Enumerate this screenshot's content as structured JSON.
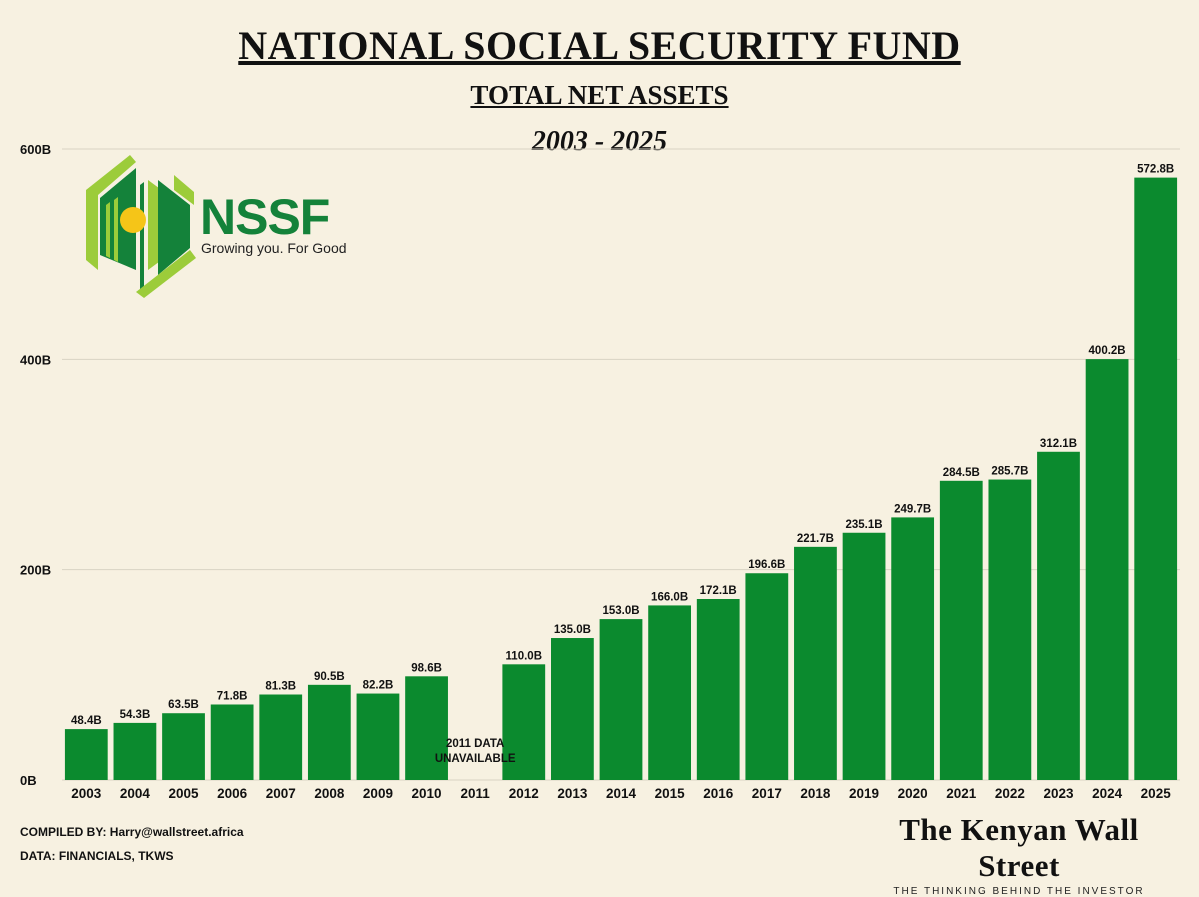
{
  "header": {
    "title": "NATIONAL SOCIAL SECURITY FUND",
    "subtitle": "TOTAL NET ASSETS",
    "range": "2003 - 2025"
  },
  "logo": {
    "name": "NSSF",
    "tagline": "Growing you. For Good"
  },
  "footer": {
    "compiled_by": "COMPILED BY: Harry@wallstreet.africa",
    "data_source": "DATA: FINANCIALS, TKWS",
    "brand_name": "The Kenyan Wall Street",
    "brand_tagline": "THE THINKING BEHIND THE INVESTOR"
  },
  "colors": {
    "background": "#f7f1e1",
    "bar": "#0b8a2e",
    "grid": "#d9d3c3",
    "logo_dark": "#14823a",
    "logo_light": "#9ccc3a",
    "logo_sun": "#f5c518"
  },
  "chart_data": {
    "type": "bar",
    "title": "TOTAL NET ASSETS",
    "ylabel": "",
    "xlabel": "",
    "ylim": [
      0,
      600
    ],
    "yticks": [
      0,
      200,
      400,
      600
    ],
    "ytick_labels": [
      "0B",
      "200B",
      "400B",
      "600B"
    ],
    "grid": true,
    "categories": [
      "2003",
      "2004",
      "2005",
      "2006",
      "2007",
      "2008",
      "2009",
      "2010",
      "2011",
      "2012",
      "2013",
      "2014",
      "2015",
      "2016",
      "2017",
      "2018",
      "2019",
      "2020",
      "2021",
      "2022",
      "2023",
      "2024",
      "2025"
    ],
    "values": [
      48.4,
      54.3,
      63.5,
      71.8,
      81.3,
      90.5,
      82.2,
      98.6,
      null,
      110.0,
      135.0,
      153.0,
      166.0,
      172.1,
      196.6,
      221.7,
      235.1,
      249.7,
      284.5,
      285.7,
      312.1,
      400.2,
      572.8
    ],
    "value_labels": [
      "48.4B",
      "54.3B",
      "63.5B",
      "71.8B",
      "81.3B",
      "90.5B",
      "82.2B",
      "98.6B",
      "",
      "110.0B",
      "135.0B",
      "153.0B",
      "166.0B",
      "172.1B",
      "196.6B",
      "221.7B",
      "235.1B",
      "249.7B",
      "284.5B",
      "285.7B",
      "312.1B",
      "400.2B",
      "572.8B"
    ],
    "annotations": [
      {
        "category": "2011",
        "lines": [
          "2011 DATA",
          "UNAVAILABLE"
        ]
      }
    ]
  }
}
